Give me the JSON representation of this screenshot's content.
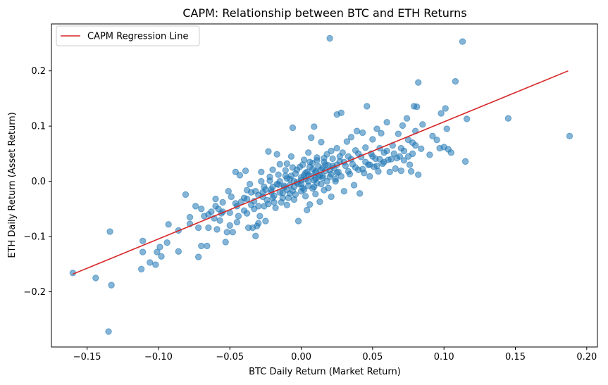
{
  "chart_data": {
    "type": "scatter",
    "title": "CAPM: Relationship between BTC and ETH Returns",
    "xlabel": "BTC Daily Return (Market Return)",
    "ylabel": "ETH Daily Return (Asset Return)",
    "xlim": [
      -0.175,
      0.2075
    ],
    "ylim": [
      -0.3,
      0.285
    ],
    "xticks": [
      -0.15,
      -0.1,
      -0.05,
      0.0,
      0.05,
      0.1,
      0.15,
      0.2
    ],
    "xtick_labels": [
      "−0.15",
      "−0.10",
      "−0.05",
      "0.00",
      "0.05",
      "0.10",
      "0.15",
      "0.20"
    ],
    "yticks": [
      -0.2,
      -0.1,
      0.0,
      0.1,
      0.2
    ],
    "ytick_labels": [
      "−0.2",
      "−0.1",
      "0.0",
      "0.1",
      "0.2"
    ],
    "grid": false,
    "legend": {
      "position": "upper-left",
      "entries": [
        "CAPM Regression Line"
      ]
    },
    "colors": {
      "scatter": "#1f77b4",
      "line": "#d62728"
    },
    "series": [
      {
        "type": "scatter",
        "opacity": 0.55,
        "points": [
          [
            -0.16,
            -0.166
          ],
          [
            -0.144,
            -0.175
          ],
          [
            -0.135,
            -0.272
          ],
          [
            -0.133,
            -0.188
          ],
          [
            -0.134,
            -0.091
          ],
          [
            -0.112,
            -0.159
          ],
          [
            -0.111,
            -0.128
          ],
          [
            -0.111,
            -0.108
          ],
          [
            -0.106,
            -0.147
          ],
          [
            -0.102,
            -0.151
          ],
          [
            -0.101,
            -0.128
          ],
          [
            -0.099,
            -0.119
          ],
          [
            -0.098,
            -0.136
          ],
          [
            -0.094,
            -0.111
          ],
          [
            -0.093,
            -0.078
          ],
          [
            -0.086,
            -0.127
          ],
          [
            -0.086,
            -0.089
          ],
          [
            -0.081,
            -0.024
          ],
          [
            -0.078,
            -0.065
          ],
          [
            -0.078,
            -0.077
          ],
          [
            -0.074,
            -0.045
          ],
          [
            -0.072,
            -0.084
          ],
          [
            -0.072,
            -0.137
          ],
          [
            -0.07,
            -0.117
          ],
          [
            -0.068,
            -0.063
          ],
          [
            -0.066,
            -0.117
          ],
          [
            -0.065,
            -0.084
          ],
          [
            -0.063,
            -0.055
          ],
          [
            -0.061,
            -0.067
          ],
          [
            -0.06,
            -0.032
          ],
          [
            -0.059,
            -0.087
          ],
          [
            -0.057,
            -0.071
          ],
          [
            -0.056,
            -0.058
          ],
          [
            -0.055,
            -0.055
          ],
          [
            -0.053,
            -0.11
          ],
          [
            -0.052,
            -0.092
          ],
          [
            -0.05,
            -0.057
          ],
          [
            -0.048,
            -0.092
          ],
          [
            -0.046,
            -0.04
          ],
          [
            -0.045,
            -0.074
          ],
          [
            -0.044,
            -0.063
          ],
          [
            -0.05,
            -0.08
          ],
          [
            -0.051,
            -0.018
          ],
          [
            -0.049,
            -0.028
          ],
          [
            -0.042,
            -0.037
          ],
          [
            -0.04,
            -0.053
          ],
          [
            -0.038,
            -0.058
          ],
          [
            -0.037,
            -0.084
          ],
          [
            -0.034,
            -0.084
          ],
          [
            -0.032,
            -0.099
          ],
          [
            -0.031,
            -0.081
          ],
          [
            -0.03,
            -0.076
          ],
          [
            -0.046,
            0.017
          ],
          [
            -0.043,
            0.011
          ],
          [
            -0.039,
            0.019
          ],
          [
            -0.038,
            -0.016
          ],
          [
            -0.036,
            -0.005
          ],
          [
            -0.035,
            -0.043
          ],
          [
            -0.033,
            -0.036
          ],
          [
            -0.03,
            -0.045
          ],
          [
            -0.029,
            -0.063
          ],
          [
            -0.028,
            0.017
          ],
          [
            -0.027,
            -0.02
          ],
          [
            -0.026,
            -0.01
          ],
          [
            -0.025,
            -0.072
          ],
          [
            -0.024,
            -0.034
          ],
          [
            -0.023,
            -0.041
          ],
          [
            -0.023,
            0.054
          ],
          [
            -0.022,
            0.001
          ],
          [
            -0.021,
            -0.015
          ],
          [
            -0.02,
            0.021
          ],
          [
            -0.019,
            -0.026
          ],
          [
            -0.018,
            -0.048
          ],
          [
            -0.017,
            0.049
          ],
          [
            -0.016,
            -0.006
          ],
          [
            -0.015,
            0.031
          ],
          [
            -0.014,
            -0.038
          ],
          [
            -0.013,
            -0.021
          ],
          [
            -0.012,
            -0.011
          ],
          [
            -0.011,
            0.01
          ],
          [
            -0.01,
            0.032
          ],
          [
            -0.01,
            -0.043
          ],
          [
            -0.009,
            -0.03
          ],
          [
            -0.008,
            0.004
          ],
          [
            -0.008,
            -0.007
          ],
          [
            -0.007,
            0.045
          ],
          [
            -0.006,
            -0.017
          ],
          [
            -0.006,
            0.097
          ],
          [
            -0.005,
            -0.033
          ],
          [
            -0.004,
            0.014
          ],
          [
            -0.004,
            -0.024
          ],
          [
            -0.003,
            0.021
          ],
          [
            -0.002,
            -0.005
          ],
          [
            -0.002,
            -0.072
          ],
          [
            -0.001,
            0.026
          ],
          [
            0.0,
            -0.018
          ],
          [
            0.0,
            0.007
          ],
          [
            0.001,
            -0.012
          ],
          [
            0.002,
            0.039
          ],
          [
            0.002,
            0.011
          ],
          [
            0.003,
            -0.027
          ],
          [
            0.003,
            0.004
          ],
          [
            0.004,
            -0.052
          ],
          [
            0.004,
            0.017
          ],
          [
            0.005,
            0.052
          ],
          [
            0.005,
            -0.008
          ],
          [
            0.006,
            0.026
          ],
          [
            0.006,
            -0.042
          ],
          [
            0.007,
            0.009
          ],
          [
            0.007,
            0.079
          ],
          [
            0.008,
            -0.013
          ],
          [
            0.008,
            0.033
          ],
          [
            0.009,
            0.002
          ],
          [
            0.009,
            0.099
          ],
          [
            0.01,
            -0.023
          ],
          [
            0.01,
            0.016
          ],
          [
            0.011,
            0.043
          ],
          [
            0.011,
            -0.003
          ],
          [
            0.012,
            0.027
          ],
          [
            0.013,
            0.011
          ],
          [
            0.013,
            -0.037
          ],
          [
            0.014,
            0.021
          ],
          [
            0.014,
            0.071
          ],
          [
            0.015,
            0.006
          ],
          [
            0.016,
            0.035
          ],
          [
            0.016,
            -0.016
          ],
          [
            0.017,
            0.019
          ],
          [
            0.018,
            0.049
          ],
          [
            0.018,
            0.0
          ],
          [
            0.019,
            0.029
          ],
          [
            0.02,
            0.259
          ],
          [
            0.021,
            0.013
          ],
          [
            0.021,
            -0.028
          ],
          [
            0.022,
            0.041
          ],
          [
            0.023,
            0.024
          ],
          [
            0.024,
            0.004
          ],
          [
            0.025,
            0.06
          ],
          [
            0.025,
            0.121
          ],
          [
            0.026,
            0.017
          ],
          [
            0.027,
            0.036
          ],
          [
            0.028,
            0.124
          ],
          [
            0.028,
            0.009
          ],
          [
            0.029,
            0.052
          ],
          [
            0.03,
            -0.018
          ],
          [
            0.031,
            0.028
          ],
          [
            0.032,
            0.072
          ],
          [
            0.033,
            0.045
          ],
          [
            0.034,
            0.013
          ],
          [
            0.035,
            0.08
          ],
          [
            0.036,
            0.031
          ],
          [
            0.037,
            -0.007
          ],
          [
            0.038,
            0.056
          ],
          [
            0.039,
            0.091
          ],
          [
            0.04,
            0.021
          ],
          [
            0.041,
            -0.022
          ],
          [
            0.042,
            0.044
          ],
          [
            0.043,
            0.088
          ],
          [
            0.044,
            0.015
          ],
          [
            0.045,
            0.061
          ],
          [
            0.046,
            0.136
          ],
          [
            0.047,
            0.03
          ],
          [
            0.048,
            0.009
          ],
          [
            0.049,
            0.05
          ],
          [
            0.05,
            0.076
          ],
          [
            0.051,
            0.026
          ],
          [
            0.052,
            0.041
          ],
          [
            0.053,
            0.095
          ],
          [
            0.054,
            0.018
          ],
          [
            0.055,
            0.06
          ],
          [
            0.056,
            0.087
          ],
          [
            0.057,
            0.032
          ],
          [
            0.058,
            0.052
          ],
          [
            0.06,
            0.107
          ],
          [
            0.061,
            0.039
          ],
          [
            0.062,
            0.017
          ],
          [
            0.064,
            0.065
          ],
          [
            0.066,
            0.023
          ],
          [
            0.068,
            0.086
          ],
          [
            0.069,
            0.045
          ],
          [
            0.07,
            0.019
          ],
          [
            0.071,
            0.101
          ],
          [
            0.072,
            0.055
          ],
          [
            0.074,
            0.114
          ],
          [
            0.075,
            0.075
          ],
          [
            0.076,
            0.03
          ],
          [
            0.077,
            0.018
          ],
          [
            0.078,
            0.07
          ],
          [
            0.079,
            0.136
          ],
          [
            0.08,
            0.091
          ],
          [
            0.081,
            0.135
          ],
          [
            0.082,
            0.179
          ],
          [
            0.082,
            0.012
          ],
          [
            0.084,
            0.059
          ],
          [
            0.085,
            0.103
          ],
          [
            0.09,
            0.048
          ],
          [
            0.092,
            0.082
          ],
          [
            0.095,
            0.075
          ],
          [
            0.097,
            0.06
          ],
          [
            0.098,
            0.123
          ],
          [
            0.1,
            0.062
          ],
          [
            0.101,
            0.132
          ],
          [
            0.102,
            0.095
          ],
          [
            0.103,
            0.058
          ],
          [
            0.105,
            0.052
          ],
          [
            0.108,
            0.181
          ],
          [
            0.113,
            0.253
          ],
          [
            0.115,
            0.036
          ],
          [
            0.116,
            0.113
          ],
          [
            0.145,
            0.114
          ],
          [
            0.188,
            0.082
          ],
          [
            -0.04,
            -0.03
          ],
          [
            -0.035,
            -0.02
          ],
          [
            -0.03,
            -0.025
          ],
          [
            -0.025,
            -0.015
          ],
          [
            -0.02,
            -0.01
          ],
          [
            -0.015,
            0.0
          ],
          [
            -0.01,
            0.005
          ],
          [
            -0.005,
            0.0
          ],
          [
            0.0,
            0.002
          ],
          [
            0.005,
            0.012
          ],
          [
            0.01,
            0.018
          ],
          [
            0.015,
            0.024
          ],
          [
            0.02,
            0.02
          ],
          [
            0.025,
            0.03
          ],
          [
            0.03,
            0.035
          ],
          [
            -0.045,
            -0.045
          ],
          [
            -0.038,
            -0.032
          ],
          [
            -0.032,
            -0.018
          ],
          [
            -0.027,
            -0.028
          ],
          [
            -0.021,
            -0.02
          ],
          [
            -0.017,
            -0.005
          ],
          [
            -0.012,
            -0.008
          ],
          [
            -0.007,
            0.01
          ],
          [
            -0.003,
            -0.002
          ],
          [
            0.003,
            0.015
          ],
          [
            0.008,
            0.022
          ],
          [
            0.012,
            0.008
          ],
          [
            0.017,
            0.03
          ],
          [
            0.022,
            0.028
          ],
          [
            0.027,
            0.045
          ],
          [
            -0.055,
            -0.038
          ],
          [
            -0.06,
            -0.045
          ],
          [
            -0.065,
            -0.06
          ],
          [
            -0.07,
            -0.05
          ],
          [
            -0.058,
            -0.05
          ],
          [
            0.035,
            0.04
          ],
          [
            0.04,
            0.05
          ],
          [
            0.045,
            0.035
          ],
          [
            0.05,
            0.045
          ],
          [
            0.055,
            0.04
          ],
          [
            0.06,
            0.055
          ],
          [
            0.065,
            0.05
          ],
          [
            0.07,
            0.06
          ],
          [
            0.075,
            0.045
          ],
          [
            0.08,
            0.065
          ],
          [
            -0.02,
            -0.03
          ],
          [
            -0.015,
            -0.02
          ],
          [
            -0.01,
            -0.015
          ],
          [
            -0.005,
            -0.01
          ],
          [
            0.0,
            -0.005
          ],
          [
            0.005,
            0.0
          ],
          [
            0.01,
            0.005
          ],
          [
            0.015,
            0.01
          ],
          [
            0.02,
            0.008
          ],
          [
            0.025,
            0.015
          ],
          [
            -0.028,
            0.0
          ],
          [
            -0.022,
            0.008
          ],
          [
            -0.016,
            0.012
          ],
          [
            -0.011,
            0.02
          ],
          [
            -0.006,
            0.025
          ],
          [
            0.001,
            0.03
          ],
          [
            0.006,
            0.035
          ],
          [
            0.011,
            0.038
          ],
          [
            0.016,
            0.042
          ],
          [
            0.021,
            0.055
          ],
          [
            -0.033,
            -0.05
          ],
          [
            -0.026,
            -0.045
          ],
          [
            -0.019,
            -0.038
          ],
          [
            -0.013,
            -0.03
          ],
          [
            -0.008,
            -0.022
          ],
          [
            0.002,
            -0.015
          ],
          [
            0.009,
            -0.01
          ],
          [
            0.014,
            -0.005
          ],
          [
            0.019,
            -0.012
          ],
          [
            0.024,
            0.0
          ],
          [
            0.033,
            0.018
          ],
          [
            0.038,
            0.025
          ],
          [
            0.043,
            0.022
          ],
          [
            0.048,
            0.03
          ],
          [
            0.053,
            0.028
          ],
          [
            0.058,
            0.035
          ],
          [
            0.063,
            0.04
          ],
          [
            0.067,
            0.042
          ],
          [
            0.072,
            0.038
          ],
          [
            0.078,
            0.05
          ]
        ]
      },
      {
        "type": "line",
        "name": "CAPM Regression Line",
        "x": [
          -0.16,
          0.187
        ],
        "y": [
          -0.168,
          0.2
        ]
      }
    ]
  }
}
